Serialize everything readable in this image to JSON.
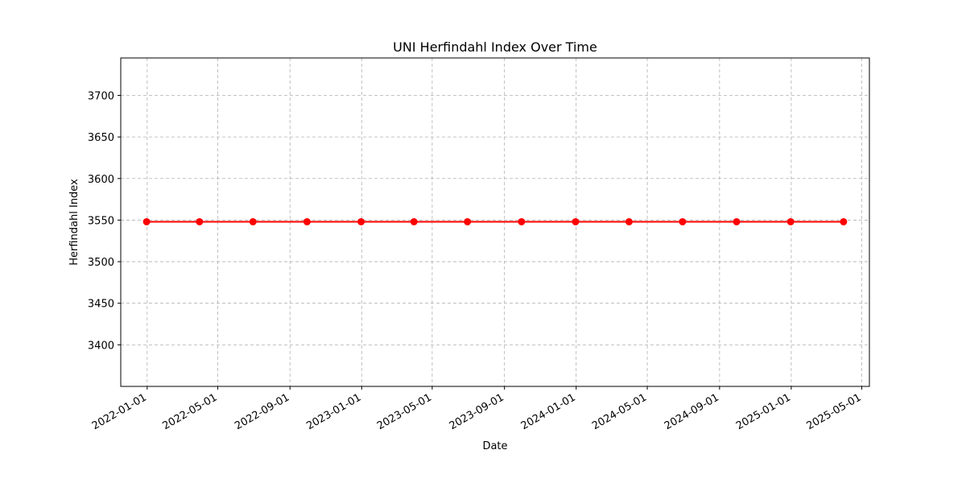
{
  "chart_data": {
    "type": "line",
    "title": "UNI Herfindahl Index Over Time",
    "xlabel": "Date",
    "ylabel": "Herfindahl Index",
    "x": [
      "2021-12-31",
      "2022-03-31",
      "2022-06-30",
      "2022-09-30",
      "2022-12-31",
      "2023-03-31",
      "2023-06-30",
      "2023-09-30",
      "2023-12-31",
      "2024-03-31",
      "2024-06-30",
      "2024-09-30",
      "2024-12-31",
      "2025-03-31"
    ],
    "series": [
      {
        "name": "",
        "color": "#ff0000",
        "values": [
          3548,
          3548,
          3548,
          3548,
          3548,
          3548,
          3548,
          3548,
          3548,
          3548,
          3548,
          3548,
          3548,
          3548
        ]
      }
    ],
    "xlim": [
      "2021-11-17",
      "2025-05-14"
    ],
    "ylim": [
      3350,
      3745
    ],
    "xticks": [
      "2022-01-01",
      "2022-05-01",
      "2022-09-01",
      "2023-01-01",
      "2023-05-01",
      "2023-09-01",
      "2024-01-01",
      "2024-05-01",
      "2024-09-01",
      "2025-01-01",
      "2025-05-01"
    ],
    "yticks": [
      3400,
      3450,
      3500,
      3550,
      3600,
      3650,
      3700
    ],
    "grid": true
  }
}
